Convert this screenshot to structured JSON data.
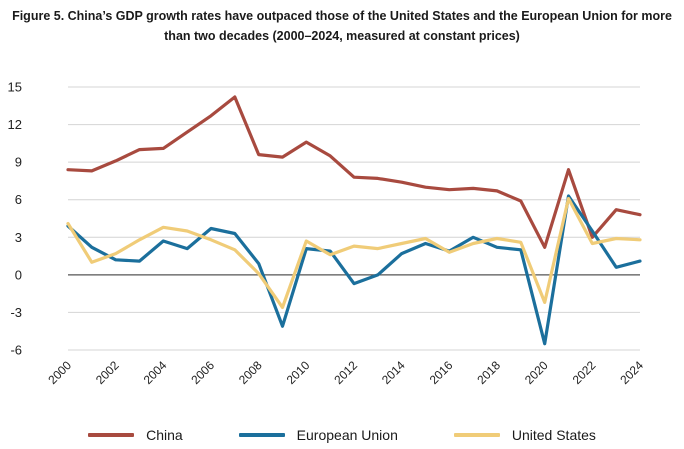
{
  "title_line1": "Figure 5. China’s GDP growth rates have outpaced those of the United States and the European Union for more",
  "title_line2": "than two decades (2000–2024, measured at constant prices)",
  "chart_data": {
    "type": "line",
    "title": "Figure 5. China’s GDP growth rates have outpaced those of the United States and the European Union for more than two decades (2000–2024, measured at constant prices)",
    "xlabel": "",
    "ylabel": "",
    "x": [
      2000,
      2001,
      2002,
      2003,
      2004,
      2005,
      2006,
      2007,
      2008,
      2009,
      2010,
      2011,
      2012,
      2013,
      2014,
      2015,
      2016,
      2017,
      2018,
      2019,
      2020,
      2021,
      2022,
      2023,
      2024
    ],
    "x_tick_labels": [
      "2000",
      "2002",
      "2004",
      "2006",
      "2008",
      "2010",
      "2012",
      "2014",
      "2016",
      "2018",
      "2020",
      "2022",
      "2024"
    ],
    "y_ticks": [
      15,
      12,
      9,
      6,
      3,
      0,
      -3,
      -6
    ],
    "ylim": [
      -6,
      15
    ],
    "grid": true,
    "legend_position": "bottom",
    "series": [
      {
        "name": "China",
        "color": "#a84a3f",
        "values": [
          8.4,
          8.3,
          9.1,
          10.0,
          10.1,
          11.4,
          12.7,
          14.2,
          9.6,
          9.4,
          10.6,
          9.5,
          7.8,
          7.7,
          7.4,
          7.0,
          6.8,
          6.9,
          6.7,
          5.9,
          2.2,
          8.4,
          3.0,
          5.2,
          4.8
        ]
      },
      {
        "name": "European Union",
        "color": "#1b6f9c",
        "values": [
          3.9,
          2.2,
          1.2,
          1.1,
          2.7,
          2.1,
          3.7,
          3.3,
          0.9,
          -4.1,
          2.1,
          1.9,
          -0.7,
          0.0,
          1.7,
          2.5,
          1.9,
          3.0,
          2.2,
          2.0,
          -5.5,
          6.3,
          3.5,
          0.6,
          1.1
        ]
      },
      {
        "name": "United States",
        "color": "#f0cc78",
        "values": [
          4.1,
          1.0,
          1.7,
          2.8,
          3.8,
          3.5,
          2.8,
          2.0,
          0.1,
          -2.6,
          2.7,
          1.6,
          2.3,
          2.1,
          2.5,
          2.9,
          1.8,
          2.5,
          2.9,
          2.6,
          -2.2,
          6.1,
          2.5,
          2.9,
          2.8
        ]
      }
    ]
  }
}
